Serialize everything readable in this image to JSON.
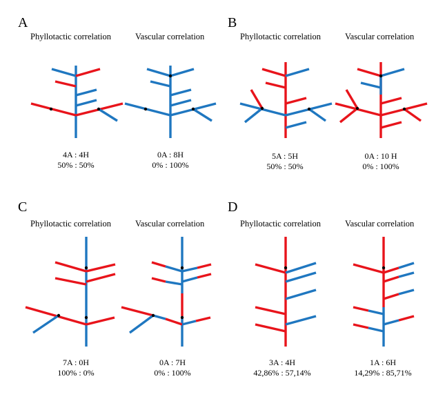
{
  "colors": {
    "A_color": "#e8141b",
    "H_color": "#1f77c0"
  },
  "panels": [
    {
      "letter": "A",
      "left_title": "Phyllotactic correlation",
      "right_title": "Vascular correlation",
      "left_counts": "4A : 4H",
      "left_percent": "50% : 50%",
      "right_counts": "0A : 8H",
      "right_percent": "0% : 100%"
    },
    {
      "letter": "B",
      "left_title": "Phyllotactic correlation",
      "right_title": "Vascular correlation",
      "left_counts": "5A : 5H",
      "left_percent": "50% : 50%",
      "right_counts": "0A : 10 H",
      "right_percent": "0% : 100%"
    },
    {
      "letter": "C",
      "left_title": "Phyllotactic correlation",
      "right_title": "Vascular correlation",
      "left_counts": "7A : 0H",
      "left_percent": "100% : 0%",
      "right_counts": "0A : 7H",
      "right_percent": "0% : 100%"
    },
    {
      "letter": "D",
      "left_title": "Phyllotactic correlation",
      "right_title": "Vascular correlation",
      "left_counts": "3A : 4H",
      "left_percent": "42,86%  : 57,14%",
      "right_counts": "1A : 6H",
      "right_percent": "14,29%  : 85,71%"
    }
  ]
}
